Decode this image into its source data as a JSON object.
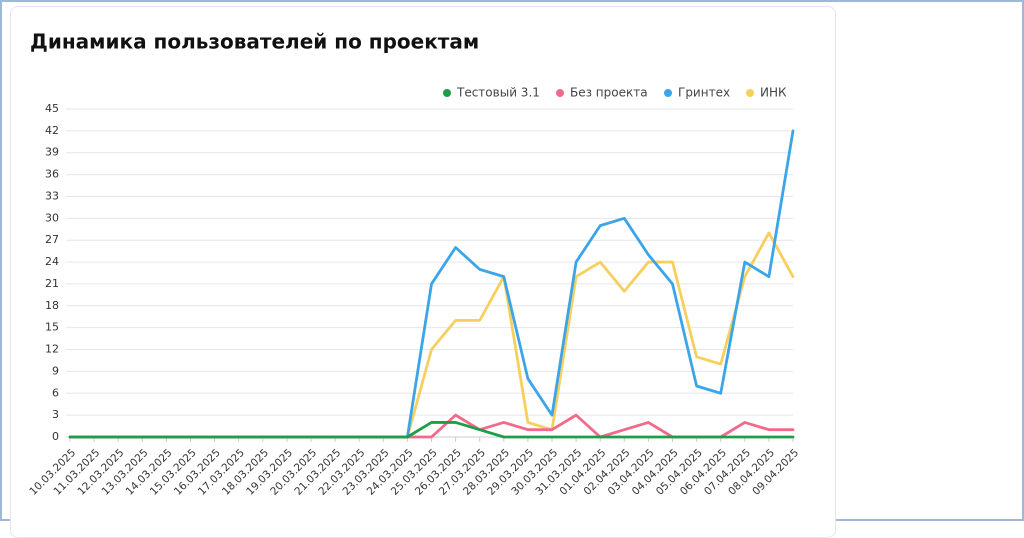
{
  "chart_data": {
    "type": "line",
    "title": "Динамика пользователей по проектам",
    "categories": [
      "10.03.2025",
      "11.03.2025",
      "12.03.2025",
      "13.03.2025",
      "14.03.2025",
      "15.03.2025",
      "16.03.2025",
      "17.03.2025",
      "18.03.2025",
      "19.03.2025",
      "20.03.2025",
      "21.03.2025",
      "22.03.2025",
      "23.03.2025",
      "24.03.2025",
      "25.03.2025",
      "26.03.2025",
      "27.03.2025",
      "28.03.2025",
      "29.03.2025",
      "30.03.2025",
      "31.03.2025",
      "01.04.2025",
      "02.04.2025",
      "03.04.2025",
      "04.04.2025",
      "05.04.2025",
      "06.04.2025",
      "07.04.2025",
      "08.04.2025",
      "09.04.2025"
    ],
    "series": [
      {
        "name": "Тестовый 3.1",
        "color": "#1f9e4a",
        "values": [
          0,
          0,
          0,
          0,
          0,
          0,
          0,
          0,
          0,
          0,
          0,
          0,
          0,
          0,
          0,
          2,
          2,
          1,
          0,
          0,
          0,
          0,
          0,
          0,
          0,
          0,
          0,
          0,
          0,
          0,
          0
        ]
      },
      {
        "name": "Без проекта",
        "color": "#f06b8a",
        "values": [
          0,
          0,
          0,
          0,
          0,
          0,
          0,
          0,
          0,
          0,
          0,
          0,
          0,
          0,
          0,
          0,
          3,
          1,
          2,
          1,
          1,
          3,
          0,
          1,
          2,
          0,
          0,
          0,
          2,
          1,
          1
        ]
      },
      {
        "name": "Гринтех",
        "color": "#3ba5e8",
        "values": [
          0,
          0,
          0,
          0,
          0,
          0,
          0,
          0,
          0,
          0,
          0,
          0,
          0,
          0,
          0,
          21,
          26,
          23,
          22,
          8,
          3,
          24,
          29,
          30,
          25,
          21,
          7,
          6,
          24,
          22,
          42
        ]
      },
      {
        "name": "ИНК",
        "color": "#f7cf5e",
        "values": [
          0,
          0,
          0,
          0,
          0,
          0,
          0,
          0,
          0,
          0,
          0,
          0,
          0,
          0,
          0,
          12,
          16,
          16,
          22,
          2,
          1,
          22,
          24,
          20,
          24,
          24,
          11,
          10,
          22,
          28,
          22
        ]
      }
    ],
    "ylim": [
      0,
      45
    ],
    "yticks": [
      0,
      3,
      6,
      9,
      12,
      15,
      18,
      21,
      24,
      27,
      30,
      33,
      36,
      39,
      42,
      45
    ],
    "grid": true,
    "legend": "top-right"
  }
}
